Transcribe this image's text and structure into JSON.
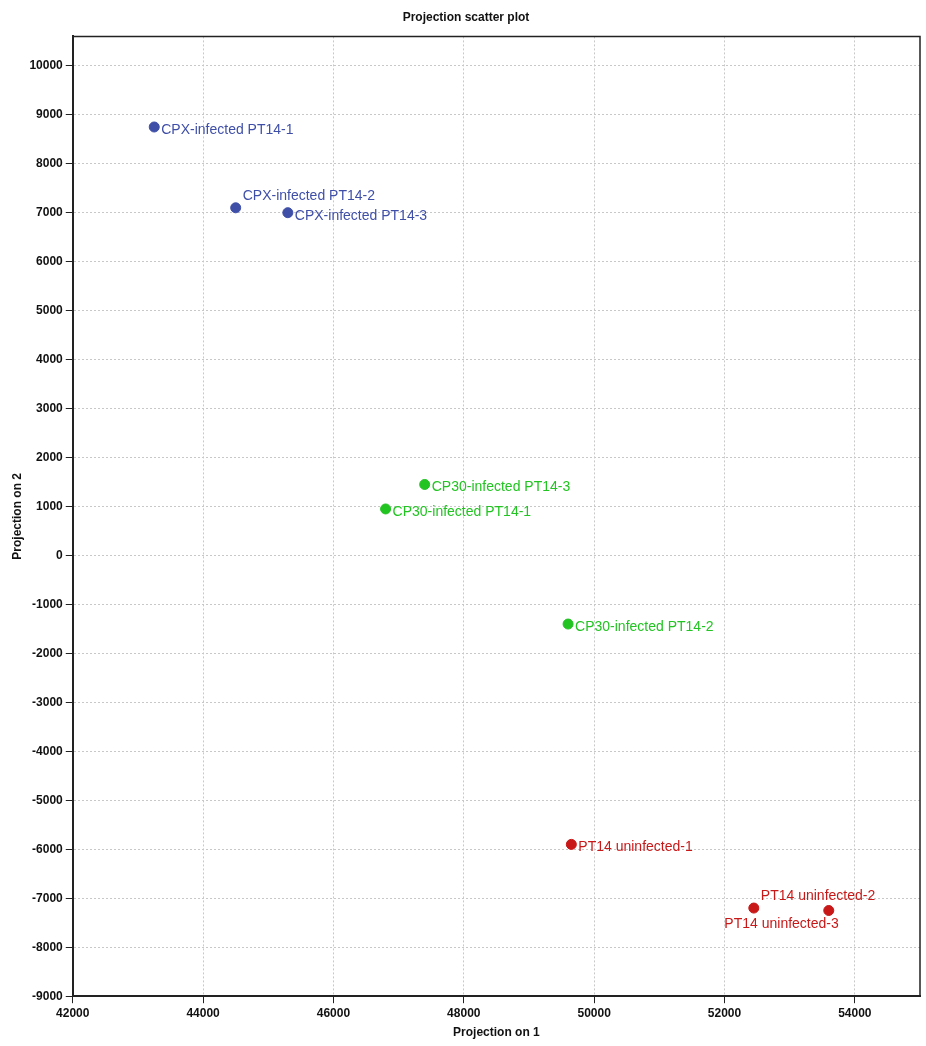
{
  "chart_data": {
    "type": "scatter",
    "title": "Projection scatter plot",
    "xlabel": "Projection on 1",
    "ylabel": "Projection on 2",
    "series": [
      {
        "color": "#3f4fa8",
        "x": [
          43250,
          44500,
          45300
        ],
        "values": [
          8750,
          7100,
          7000
        ]
      },
      {
        "color": "#22c422",
        "x": [
          46800,
          49600,
          47400
        ],
        "values": [
          950,
          -1400,
          1450
        ]
      },
      {
        "color": "#c81818",
        "x": [
          49650,
          52450,
          53600
        ],
        "values": [
          -5900,
          -7200,
          -7250
        ]
      }
    ],
    "annotations": [
      {
        "text": "CPX-infected PT14-1",
        "x": 43250,
        "y": 8750
      },
      {
        "text": "CPX-infected PT14-2",
        "x": 44500,
        "y": 7100
      },
      {
        "text": "CPX-infected PT14-3",
        "x": 45300,
        "y": 7000
      },
      {
        "text": "CP30-infected PT14-1",
        "x": 46800,
        "y": 950
      },
      {
        "text": "CP30-infected PT14-2",
        "x": 49600,
        "y": -1400
      },
      {
        "text": "CP30-infected PT14-3",
        "x": 47400,
        "y": 1450
      },
      {
        "text": "PT14 uninfected-1",
        "x": 49650,
        "y": -5900
      },
      {
        "text": "PT14 uninfected-2",
        "x": 52450,
        "y": -7200
      },
      {
        "text": "PT14 uninfected-3",
        "x": 53600,
        "y": -7250
      }
    ],
    "xlim": [
      42000,
      55000
    ],
    "xticks": [
      42000,
      44000,
      46000,
      48000,
      50000,
      52000,
      54000
    ],
    "ylim": [
      -9000,
      10600
    ],
    "yticks": [
      -9000,
      -8000,
      -7000,
      -6000,
      -5000,
      -4000,
      -3000,
      -2000,
      -1000,
      0,
      1000,
      2000,
      3000,
      4000,
      5000,
      6000,
      7000,
      8000,
      9000,
      10000
    ],
    "grid": true,
    "marker": "circle",
    "legend": false
  }
}
